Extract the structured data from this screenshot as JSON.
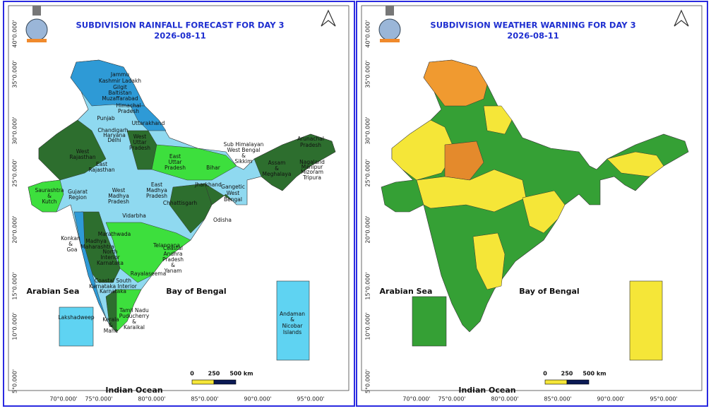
{
  "panels": [
    {
      "title": "SUBDIVISION RAINFALL FORECAST FOR DAY 3",
      "date": "2026-08-11",
      "lat_labels": [
        "40°0.000'",
        "35°0.000'",
        "30°0.000'",
        "25°0.000'",
        "20°0.000'",
        "15°0.000'",
        "10°0.000'",
        "5°0.000'"
      ],
      "lon_labels": [
        "70°0.000'",
        "75°0.000'",
        "80°0.000'",
        "85°0.000'",
        "90°0.000'",
        "95°0.000'"
      ],
      "sea_labels": [
        "Arabian Sea",
        "Bay of Bengal",
        "Indian Ocean"
      ],
      "scale_labels": [
        "0",
        "250",
        "500 km"
      ],
      "region_labels": [
        "Jammu",
        "Kashmir Ladakh",
        "Gilgit",
        "Baltistan",
        "Muzaffarabad",
        "Himachal",
        "Pradesh",
        "Punjab",
        "Uttarakhand",
        "Chandigarh",
        "Haryana",
        "Delhi",
        "West",
        "Rajasthan",
        "West",
        "Uttar",
        "Pradesh",
        "East",
        "Rajasthan",
        "East",
        "Uttar",
        "Pradesh",
        "Bihar",
        "Sub Himalayan",
        "West Bengal",
        "&",
        "Sikkim",
        "Arunachal",
        "Pradesh",
        "Assam",
        "&",
        "Meghalaya",
        "Nagaland",
        "Manipur",
        "Mizoram",
        "Tripura",
        "Jharkhand",
        "Gangetic",
        "West",
        "Bengal",
        "Gujarat",
        "Region",
        "Saurashtra",
        "&",
        "Kutch",
        "West",
        "Madhya",
        "Pradesh",
        "East",
        "Madhya",
        "Pradesh",
        "Chhattisgarh",
        "Odisha",
        "Vidarbha",
        "Marathwada",
        "Telangana",
        "Konkan",
        "&",
        "Goa",
        "Madhya",
        "Maharashtra",
        "North",
        "Interior",
        "Karnataka",
        "Coastal",
        "Andhra",
        "Pradesh",
        "&",
        "Yanam",
        "Rayalaseema",
        "Coastal South",
        "Karnataka Interior",
        "Karnataka",
        "Tamil Nadu",
        "Puducherry",
        "&",
        "Karaikal",
        "Kerala",
        "&",
        "Mahe",
        "Lakshadweep",
        "Andaman",
        "&",
        "Nicobar",
        "Islands"
      ]
    },
    {
      "title": "SUBDIVISION WEATHER WARNING FOR DAY 3",
      "date": "2026-08-11",
      "lat_labels": [
        "40°0.000'",
        "35°0.000'",
        "30°0.000'",
        "25°0.000'",
        "20°0.000'",
        "15°0.000'",
        "10°0.000'",
        "5°0.000'"
      ],
      "lon_labels": [
        "70°0.000'",
        "75°0.000'",
        "80°0.000'",
        "85°0.000'",
        "90°0.000'",
        "95°0.000'"
      ],
      "sea_labels": [
        "Arabian Sea",
        "Bay of Bengal",
        "Indian Ocean"
      ],
      "scale_labels": [
        "0",
        "250",
        "500 km"
      ]
    }
  ]
}
